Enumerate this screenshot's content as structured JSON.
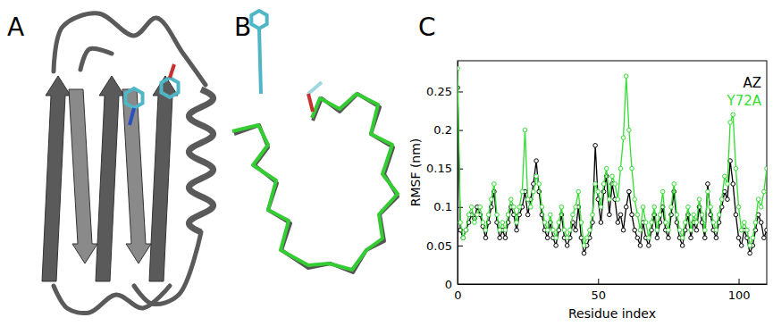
{
  "figure": {
    "panel_labels": [
      "A",
      "B",
      "C"
    ]
  },
  "chart_data": {
    "type": "line",
    "x_label": "Residue index",
    "y_label": "RMSF (nm)",
    "x": [
      0,
      1,
      2,
      3,
      4,
      5,
      6,
      7,
      8,
      9,
      10,
      11,
      12,
      13,
      14,
      15,
      16,
      17,
      18,
      19,
      20,
      21,
      22,
      23,
      24,
      25,
      26,
      27,
      28,
      29,
      30,
      31,
      32,
      33,
      34,
      35,
      36,
      37,
      38,
      39,
      40,
      41,
      42,
      43,
      44,
      45,
      46,
      47,
      48,
      49,
      50,
      51,
      52,
      53,
      54,
      55,
      56,
      57,
      58,
      59,
      60,
      61,
      62,
      63,
      64,
      65,
      66,
      67,
      68,
      69,
      70,
      71,
      72,
      73,
      74,
      75,
      76,
      77,
      78,
      79,
      80,
      81,
      82,
      83,
      84,
      85,
      86,
      87,
      88,
      89,
      90,
      91,
      92,
      93,
      94,
      95,
      96,
      97,
      98,
      99,
      100,
      101,
      102,
      103,
      104,
      105,
      106,
      107,
      108,
      109,
      110
    ],
    "series": [
      {
        "name": "AZ",
        "color": "#000000",
        "marker": "circle",
        "values": [
          0.255,
          0.07,
          0.06,
          0.07,
          0.08,
          0.09,
          0.085,
          0.1,
          0.09,
          0.075,
          0.06,
          0.08,
          0.1,
          0.12,
          0.08,
          0.06,
          0.07,
          0.06,
          0.08,
          0.1,
          0.09,
          0.07,
          0.09,
          0.1,
          0.12,
          0.09,
          0.11,
          0.13,
          0.16,
          0.12,
          0.09,
          0.07,
          0.06,
          0.08,
          0.06,
          0.05,
          0.07,
          0.09,
          0.06,
          0.05,
          0.06,
          0.08,
          0.07,
          0.1,
          0.06,
          0.04,
          0.05,
          0.06,
          0.08,
          0.18,
          0.11,
          0.08,
          0.12,
          0.14,
          0.09,
          0.13,
          0.11,
          0.08,
          0.09,
          0.07,
          0.1,
          0.12,
          0.09,
          0.07,
          0.06,
          0.05,
          0.08,
          0.06,
          0.05,
          0.07,
          0.09,
          0.06,
          0.08,
          0.1,
          0.07,
          0.06,
          0.09,
          0.12,
          0.08,
          0.06,
          0.05,
          0.07,
          0.09,
          0.06,
          0.08,
          0.07,
          0.1,
          0.08,
          0.06,
          0.13,
          0.09,
          0.07,
          0.06,
          0.08,
          0.1,
          0.12,
          0.11,
          0.16,
          0.13,
          0.09,
          0.06,
          0.05,
          0.07,
          0.06,
          0.04,
          0.05,
          0.07,
          0.09,
          0.08,
          0.06,
          0.07
        ]
      },
      {
        "name": "Y72A",
        "color": "#33dd33",
        "marker": "circle",
        "values": [
          0.28,
          0.08,
          0.06,
          0.07,
          0.09,
          0.1,
          0.08,
          0.09,
          0.1,
          0.08,
          0.07,
          0.09,
          0.11,
          0.13,
          0.09,
          0.07,
          0.08,
          0.07,
          0.09,
          0.11,
          0.1,
          0.08,
          0.1,
          0.12,
          0.2,
          0.11,
          0.1,
          0.12,
          0.14,
          0.13,
          0.1,
          0.08,
          0.07,
          0.09,
          0.07,
          0.06,
          0.08,
          0.1,
          0.07,
          0.06,
          0.07,
          0.09,
          0.1,
          0.12,
          0.08,
          0.05,
          0.06,
          0.07,
          0.09,
          0.13,
          0.12,
          0.1,
          0.13,
          0.15,
          0.11,
          0.14,
          0.13,
          0.11,
          0.15,
          0.19,
          0.27,
          0.2,
          0.15,
          0.11,
          0.09,
          0.07,
          0.1,
          0.08,
          0.06,
          0.08,
          0.1,
          0.07,
          0.09,
          0.12,
          0.08,
          0.07,
          0.1,
          0.13,
          0.09,
          0.07,
          0.06,
          0.08,
          0.1,
          0.07,
          0.09,
          0.08,
          0.11,
          0.09,
          0.07,
          0.12,
          0.1,
          0.08,
          0.07,
          0.09,
          0.11,
          0.14,
          0.13,
          0.21,
          0.22,
          0.15,
          0.1,
          0.07,
          0.08,
          0.07,
          0.05,
          0.06,
          0.08,
          0.11,
          0.1,
          0.12,
          0.15
        ]
      }
    ],
    "xlim": [
      0,
      110
    ],
    "ylim": [
      0,
      0.29
    ],
    "xticks": [
      0,
      50,
      100
    ],
    "yticks": [
      0,
      0.05,
      0.1,
      0.15,
      0.2,
      0.25
    ],
    "grid": false,
    "legend": "top-right"
  }
}
